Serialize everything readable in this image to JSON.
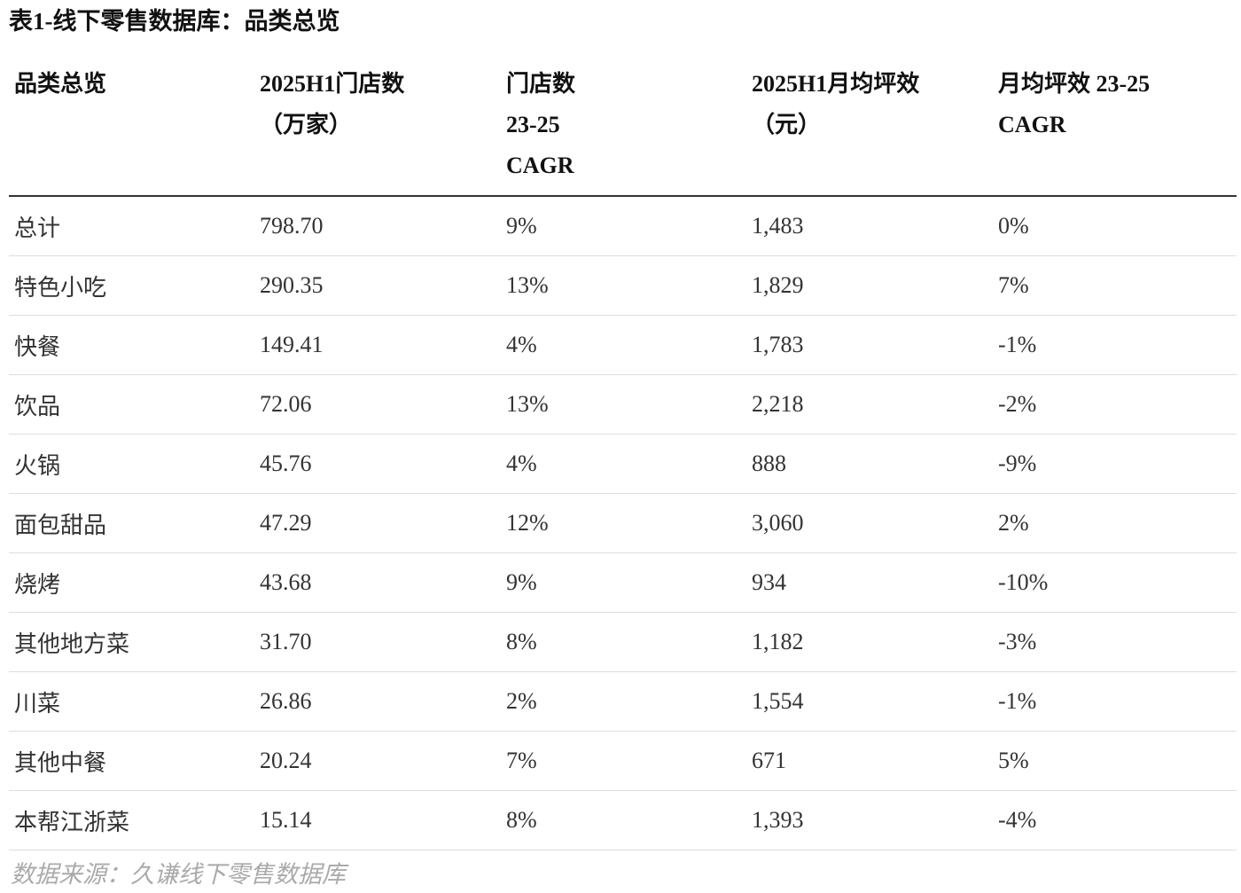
{
  "title": "表1-线下零售数据库：品类总览",
  "headers": [
    [
      "品类总览"
    ],
    [
      "2025H1门店数",
      "（万家）"
    ],
    [
      "门店数",
      "23-25",
      "CAGR"
    ],
    [
      "2025H1月均坪效",
      "（元）"
    ],
    [
      "月均坪效 23-25",
      "CAGR"
    ]
  ],
  "rows": [
    [
      "总计",
      "798.70",
      "9%",
      "1,483",
      "0%"
    ],
    [
      "特色小吃",
      "290.35",
      "13%",
      "1,829",
      "7%"
    ],
    [
      "快餐",
      "149.41",
      "4%",
      "1,783",
      "-1%"
    ],
    [
      "饮品",
      "72.06",
      "13%",
      "2,218",
      "-2%"
    ],
    [
      "火锅",
      "45.76",
      "4%",
      "888",
      "-9%"
    ],
    [
      "面包甜品",
      "47.29",
      "12%",
      "3,060",
      "2%"
    ],
    [
      "烧烤",
      "43.68",
      "9%",
      "934",
      "-10%"
    ],
    [
      "其他地方菜",
      "31.70",
      "8%",
      "1,182",
      "-3%"
    ],
    [
      "川菜",
      "26.86",
      "2%",
      "1,554",
      "-1%"
    ],
    [
      "其他中餐",
      "20.24",
      "7%",
      "671",
      "5%"
    ],
    [
      "本帮江浙菜",
      "15.14",
      "8%",
      "1,393",
      "-4%"
    ]
  ],
  "source": "数据来源：久谦线下零售数据库"
}
